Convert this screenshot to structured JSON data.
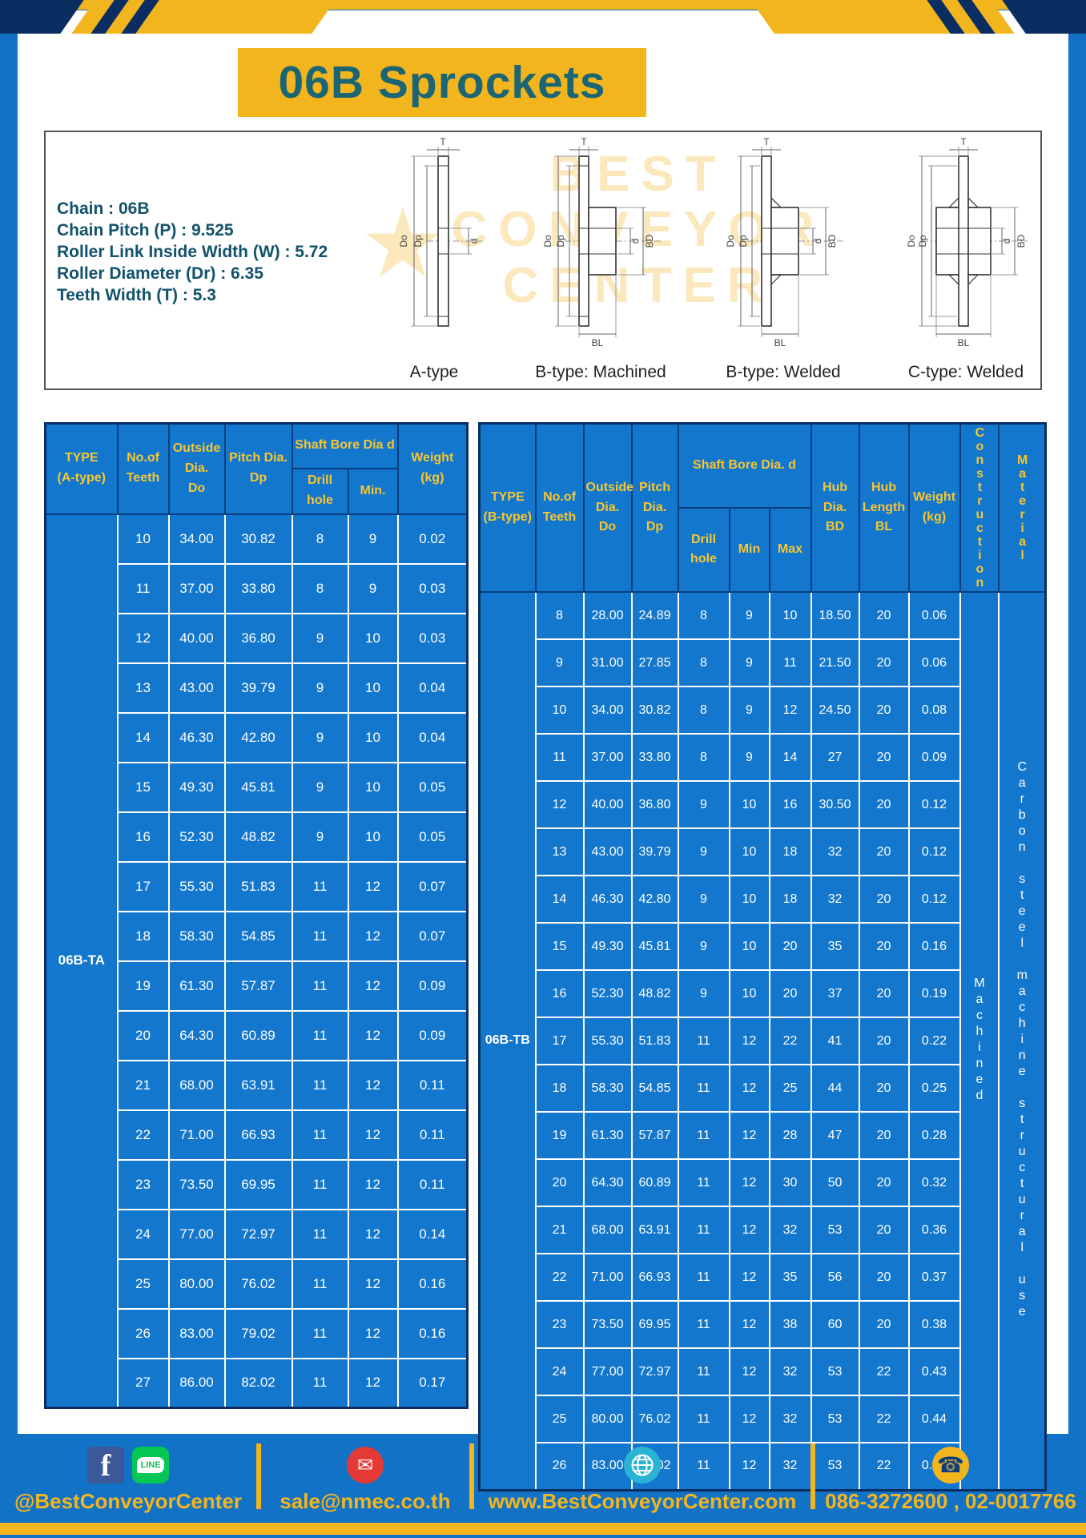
{
  "title": "06B Sprockets",
  "specs": {
    "chain": "Chain : 06B",
    "pitch": "Chain Pitch (P) : 9.525",
    "roller_width": "Roller Link Inside Width (W) : 5.72",
    "roller_dia": "Roller Diameter (Dr) : 6.35",
    "teeth_width": "Teeth Width (T) : 5.3"
  },
  "watermark": "BEST\nCONVEYOR\nCENTER",
  "watermark_star": "★",
  "drawings": {
    "captions": [
      "A-type",
      "B-type: Machined",
      "B-type: Welded",
      "C-type: Welded"
    ],
    "dim": {
      "t": "T",
      "do": "Do",
      "dp": "Dp",
      "d": "d",
      "bd": "BD",
      "bl": "BL"
    }
  },
  "table_a": {
    "type_value": "06B-TA",
    "headers": {
      "type": "TYPE\n(A-type)",
      "teeth": "No.of\nTeeth",
      "outside": "Outside\nDia.\nDo",
      "pitch": "Pitch Dia.\nDp",
      "bore_group": "Shaft Bore Dia d",
      "drill": "Drill hole",
      "min": "Min.",
      "weight": "Weight\n(kg)"
    },
    "rows": [
      [
        "10",
        "34.00",
        "30.82",
        "8",
        "9",
        "0.02"
      ],
      [
        "11",
        "37.00",
        "33.80",
        "8",
        "9",
        "0.03"
      ],
      [
        "12",
        "40.00",
        "36.80",
        "9",
        "10",
        "0.03"
      ],
      [
        "13",
        "43.00",
        "39.79",
        "9",
        "10",
        "0.04"
      ],
      [
        "14",
        "46.30",
        "42.80",
        "9",
        "10",
        "0.04"
      ],
      [
        "15",
        "49.30",
        "45.81",
        "9",
        "10",
        "0.05"
      ],
      [
        "16",
        "52.30",
        "48.82",
        "9",
        "10",
        "0.05"
      ],
      [
        "17",
        "55.30",
        "51.83",
        "11",
        "12",
        "0.07"
      ],
      [
        "18",
        "58.30",
        "54.85",
        "11",
        "12",
        "0.07"
      ],
      [
        "19",
        "61.30",
        "57.87",
        "11",
        "12",
        "0.09"
      ],
      [
        "20",
        "64.30",
        "60.89",
        "11",
        "12",
        "0.09"
      ],
      [
        "21",
        "68.00",
        "63.91",
        "11",
        "12",
        "0.11"
      ],
      [
        "22",
        "71.00",
        "66.93",
        "11",
        "12",
        "0.11"
      ],
      [
        "23",
        "73.50",
        "69.95",
        "11",
        "12",
        "0.11"
      ],
      [
        "24",
        "77.00",
        "72.97",
        "11",
        "12",
        "0.14"
      ],
      [
        "25",
        "80.00",
        "76.02",
        "11",
        "12",
        "0.16"
      ],
      [
        "26",
        "83.00",
        "79.02",
        "11",
        "12",
        "0.16"
      ],
      [
        "27",
        "86.00",
        "82.02",
        "11",
        "12",
        "0.17"
      ]
    ]
  },
  "table_b": {
    "type_value": "06B-TB",
    "construction_value": "Machined",
    "material_value": "Carbon steel machine structural use",
    "headers": {
      "type": "TYPE\n(B-type)",
      "teeth": "No.of\nTeeth",
      "outside": "Outside\nDia.\nDo",
      "pitch": "Pitch\nDia.\nDp",
      "bore_group": "Shaft Bore Dia. d",
      "drill": "Drill hole",
      "min": "Min",
      "max": "Max",
      "hub_dia": "Hub\nDia.\nBD",
      "hub_len": "Hub\nLength\nBL",
      "weight": "Weight\n(kg)",
      "construction": "Construction",
      "material": "Material"
    },
    "rows": [
      [
        "8",
        "28.00",
        "24.89",
        "8",
        "9",
        "10",
        "18.50",
        "20",
        "0.06"
      ],
      [
        "9",
        "31.00",
        "27.85",
        "8",
        "9",
        "11",
        "21.50",
        "20",
        "0.06"
      ],
      [
        "10",
        "34.00",
        "30.82",
        "8",
        "9",
        "12",
        "24.50",
        "20",
        "0.08"
      ],
      [
        "11",
        "37.00",
        "33.80",
        "8",
        "9",
        "14",
        "27",
        "20",
        "0.09"
      ],
      [
        "12",
        "40.00",
        "36.80",
        "9",
        "10",
        "16",
        "30.50",
        "20",
        "0.12"
      ],
      [
        "13",
        "43.00",
        "39.79",
        "9",
        "10",
        "18",
        "32",
        "20",
        "0.12"
      ],
      [
        "14",
        "46.30",
        "42.80",
        "9",
        "10",
        "18",
        "32",
        "20",
        "0.12"
      ],
      [
        "15",
        "49.30",
        "45.81",
        "9",
        "10",
        "20",
        "35",
        "20",
        "0.16"
      ],
      [
        "16",
        "52.30",
        "48.82",
        "9",
        "10",
        "20",
        "37",
        "20",
        "0.19"
      ],
      [
        "17",
        "55.30",
        "51.83",
        "11",
        "12",
        "22",
        "41",
        "20",
        "0.22"
      ],
      [
        "18",
        "58.30",
        "54.85",
        "11",
        "12",
        "25",
        "44",
        "20",
        "0.25"
      ],
      [
        "19",
        "61.30",
        "57.87",
        "11",
        "12",
        "28",
        "47",
        "20",
        "0.28"
      ],
      [
        "20",
        "64.30",
        "60.89",
        "11",
        "12",
        "30",
        "50",
        "20",
        "0.32"
      ],
      [
        "21",
        "68.00",
        "63.91",
        "11",
        "12",
        "32",
        "53",
        "20",
        "0.36"
      ],
      [
        "22",
        "71.00",
        "66.93",
        "11",
        "12",
        "35",
        "56",
        "20",
        "0.37"
      ],
      [
        "23",
        "73.50",
        "69.95",
        "11",
        "12",
        "38",
        "60",
        "20",
        "0.38"
      ],
      [
        "24",
        "77.00",
        "72.97",
        "11",
        "12",
        "32",
        "53",
        "22",
        "0.43"
      ],
      [
        "25",
        "80.00",
        "76.02",
        "11",
        "12",
        "32",
        "53",
        "22",
        "0.44"
      ],
      [
        "26",
        "83.00",
        "79.02",
        "11",
        "12",
        "32",
        "53",
        "22",
        "0.45"
      ]
    ]
  },
  "footer": {
    "facebook_label": "@BestConveyorCenter",
    "email": "sale@nmec.co.th",
    "website": "www.BestConveyorCenter.com",
    "phone": "086-3272600 , 02-0017766",
    "icons": {
      "facebook": "f",
      "line": "LINE",
      "email": "✉",
      "phone": "☎"
    }
  },
  "colors": {
    "frame_blue": "#1272c6",
    "table_blue": "#1377cd",
    "yellow": "#f3b51e",
    "navy": "#0a2d62",
    "title_teal": "#1b6574",
    "header_text": "#f8c630"
  }
}
